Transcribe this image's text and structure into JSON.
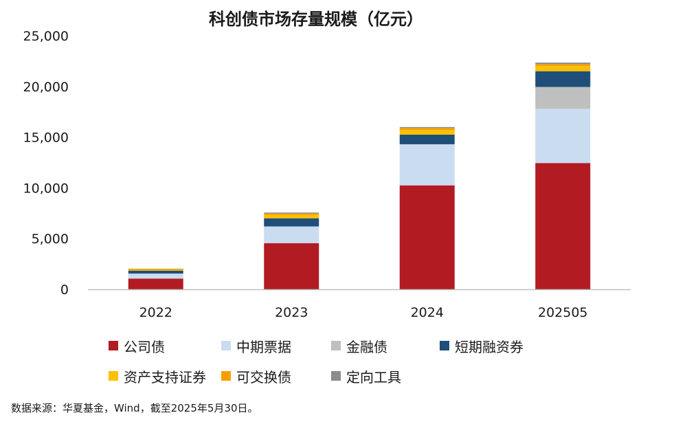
{
  "chart_data": {
    "type": "bar",
    "stacked": true,
    "title": "科创债市场存量规模（亿元）",
    "xlabel": "",
    "ylabel": "",
    "categories": [
      "2022",
      "2023",
      "2024",
      "202505"
    ],
    "ylim": [
      0,
      25000
    ],
    "yticks": [
      "0",
      "5,000",
      "10,000",
      "15,000",
      "20,000",
      "25,000"
    ],
    "ytick_values": [
      0,
      5000,
      10000,
      15000,
      20000,
      25000
    ],
    "grid": false,
    "legend_position": "bottom",
    "series": [
      {
        "name": "公司债",
        "color": "#B31B23",
        "values": [
          1050,
          4550,
          10250,
          12450
        ]
      },
      {
        "name": "中期票据",
        "color": "#C9DCF0",
        "values": [
          500,
          1650,
          4050,
          5350
        ]
      },
      {
        "name": "金融债",
        "color": "#BFBFBF",
        "values": [
          0,
          0,
          0,
          2150
        ]
      },
      {
        "name": "短期融资券",
        "color": "#1F4E79",
        "values": [
          280,
          800,
          950,
          1550
        ]
      },
      {
        "name": "资产支持证券",
        "color": "#FFC000",
        "values": [
          100,
          350,
          450,
          500
        ]
      },
      {
        "name": "可交换债",
        "color": "#F5A000",
        "values": [
          70,
          120,
          200,
          200
        ]
      },
      {
        "name": "定向工具",
        "color": "#8C8C8C",
        "values": [
          30,
          100,
          100,
          150
        ]
      }
    ]
  },
  "source_note": "数据来源：华夏基金，Wind，截至2025年5月30日。"
}
